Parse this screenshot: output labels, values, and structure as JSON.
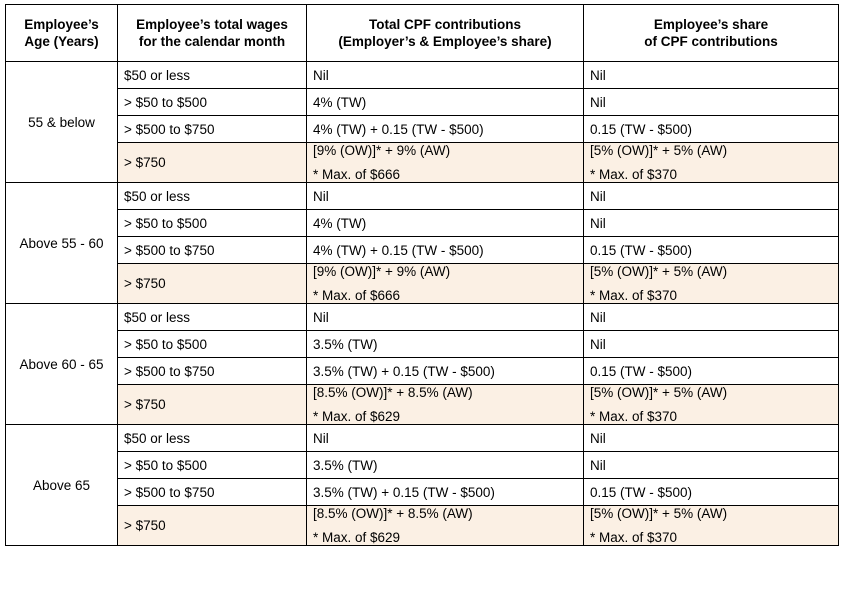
{
  "table": {
    "headers": [
      "Employee’s\nAge (Years)",
      "Employee’s total wages\nfor the calendar month",
      "Total CPF contributions\n(Employer’s & Employee’s share)",
      "Employee’s share\nof CPF contributions"
    ],
    "header_lines": [
      [
        "Employee’s",
        "Age (Years)"
      ],
      [
        "Employee’s total wages",
        "for the calendar month"
      ],
      [
        "Total CPF contributions",
        "(Employer’s & Employee’s share)"
      ],
      [
        "Employee’s share",
        "of CPF contributions"
      ]
    ],
    "groups": [
      {
        "age": "55 & below",
        "rows": [
          {
            "wages": "$50 or less",
            "total": "Nil",
            "employee": "Nil"
          },
          {
            "wages": "> $50 to $500",
            "total": "4% (TW)",
            "employee": "Nil"
          },
          {
            "wages": "> $500 to $750",
            "total": "4% (TW) + 0.15 (TW - $500)",
            "employee": "0.15 (TW - $500)"
          },
          {
            "wages": "> $750",
            "total": "[9% (OW)]* + 9% (AW)",
            "total_note": "* Max. of $666",
            "employee": "[5% (OW)]* + 5% (AW)",
            "employee_note": "* Max. of $370"
          }
        ]
      },
      {
        "age": "Above 55 - 60",
        "rows": [
          {
            "wages": "$50 or less",
            "total": "Nil",
            "employee": "Nil"
          },
          {
            "wages": "> $50 to $500",
            "total": "4% (TW)",
            "employee": "Nil"
          },
          {
            "wages": "> $500 to $750",
            "total": "4% (TW) + 0.15 (TW - $500)",
            "employee": "0.15 (TW - $500)"
          },
          {
            "wages": "> $750",
            "total": "[9% (OW)]* + 9% (AW)",
            "total_note": "* Max. of $666",
            "employee": "[5% (OW)]* + 5% (AW)",
            "employee_note": "* Max. of $370"
          }
        ]
      },
      {
        "age": "Above 60 - 65",
        "rows": [
          {
            "wages": "$50 or less",
            "total": "Nil",
            "employee": "Nil"
          },
          {
            "wages": "> $50 to $500",
            "total": "3.5% (TW)",
            "employee": "Nil"
          },
          {
            "wages": "> $500 to $750",
            "total": "3.5% (TW) + 0.15 (TW - $500)",
            "employee": "0.15 (TW - $500)"
          },
          {
            "wages": "> $750",
            "total": "[8.5% (OW)]* + 8.5% (AW)",
            "total_note": "* Max. of $629",
            "employee": "[5% (OW)]* + 5% (AW)",
            "employee_note": "* Max. of $370"
          }
        ]
      },
      {
        "age": "Above 65",
        "rows": [
          {
            "wages": "$50 or less",
            "total": "Nil",
            "employee": "Nil"
          },
          {
            "wages": "> $50 to $500",
            "total": "3.5% (TW)",
            "employee": "Nil"
          },
          {
            "wages": "> $500 to $750",
            "total": "3.5% (TW) + 0.15 (TW - $500)",
            "employee": "0.15 (TW - $500)"
          },
          {
            "wages": "> $750",
            "total": "[8.5% (OW)]* + 8.5% (AW)",
            "total_note": "* Max. of $629",
            "employee": "[5% (OW)]* + 5% (AW)",
            "employee_note": "* Max. of $370"
          }
        ]
      }
    ],
    "colors": {
      "shade": "#fbf0e4",
      "border": "#000000"
    }
  }
}
